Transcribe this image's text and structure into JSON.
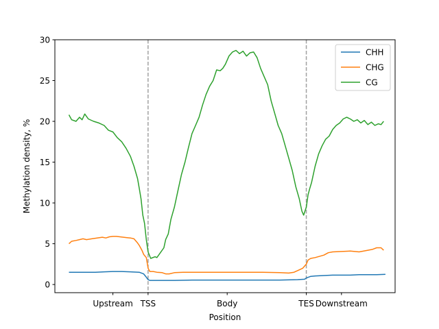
{
  "chart_data": {
    "type": "line",
    "xlabel": "Position",
    "ylabel": "Methylation density, %",
    "ylim": [
      -1,
      30
    ],
    "xlim": [
      -16,
      371
    ],
    "yticks": [
      0,
      5,
      10,
      15,
      20,
      25,
      30
    ],
    "x_tick_labels": [
      {
        "x": 50,
        "label": "Upstream"
      },
      {
        "x": 90,
        "label": "TSS"
      },
      {
        "x": 180,
        "label": "Body"
      },
      {
        "x": 270,
        "label": "TES"
      },
      {
        "x": 310,
        "label": "Downstream"
      }
    ],
    "vlines": [
      90,
      270
    ],
    "legend": {
      "position": "top-right"
    },
    "series": [
      {
        "name": "CHH",
        "color": "#1f77b4",
        "points": [
          [
            0,
            1.5
          ],
          [
            10,
            1.5
          ],
          [
            20,
            1.5
          ],
          [
            30,
            1.5
          ],
          [
            40,
            1.55
          ],
          [
            50,
            1.6
          ],
          [
            60,
            1.6
          ],
          [
            70,
            1.55
          ],
          [
            80,
            1.5
          ],
          [
            85,
            1.3
          ],
          [
            88,
            0.9
          ],
          [
            90,
            0.6
          ],
          [
            92,
            0.5
          ],
          [
            100,
            0.5
          ],
          [
            120,
            0.5
          ],
          [
            140,
            0.55
          ],
          [
            160,
            0.55
          ],
          [
            180,
            0.55
          ],
          [
            200,
            0.55
          ],
          [
            220,
            0.55
          ],
          [
            240,
            0.55
          ],
          [
            260,
            0.6
          ],
          [
            268,
            0.65
          ],
          [
            270,
            0.8
          ],
          [
            275,
            1.0
          ],
          [
            280,
            1.05
          ],
          [
            290,
            1.1
          ],
          [
            300,
            1.15
          ],
          [
            310,
            1.15
          ],
          [
            320,
            1.15
          ],
          [
            330,
            1.2
          ],
          [
            340,
            1.2
          ],
          [
            350,
            1.2
          ],
          [
            360,
            1.25
          ]
        ]
      },
      {
        "name": "CHG",
        "color": "#ff7f0e",
        "points": [
          [
            0,
            5.0
          ],
          [
            3,
            5.3
          ],
          [
            8,
            5.4
          ],
          [
            12,
            5.5
          ],
          [
            16,
            5.6
          ],
          [
            20,
            5.5
          ],
          [
            26,
            5.6
          ],
          [
            32,
            5.7
          ],
          [
            38,
            5.8
          ],
          [
            42,
            5.7
          ],
          [
            46,
            5.85
          ],
          [
            50,
            5.9
          ],
          [
            54,
            5.9
          ],
          [
            58,
            5.85
          ],
          [
            62,
            5.8
          ],
          [
            66,
            5.75
          ],
          [
            70,
            5.7
          ],
          [
            74,
            5.6
          ],
          [
            78,
            5.1
          ],
          [
            80,
            4.8
          ],
          [
            83,
            4.2
          ],
          [
            85,
            3.7
          ],
          [
            88,
            3.3
          ],
          [
            90,
            2.0
          ],
          [
            92,
            1.6
          ],
          [
            96,
            1.6
          ],
          [
            100,
            1.5
          ],
          [
            106,
            1.45
          ],
          [
            110,
            1.3
          ],
          [
            114,
            1.3
          ],
          [
            120,
            1.45
          ],
          [
            130,
            1.5
          ],
          [
            140,
            1.5
          ],
          [
            160,
            1.5
          ],
          [
            180,
            1.5
          ],
          [
            200,
            1.5
          ],
          [
            220,
            1.5
          ],
          [
            240,
            1.45
          ],
          [
            250,
            1.4
          ],
          [
            256,
            1.5
          ],
          [
            262,
            1.8
          ],
          [
            266,
            2.0
          ],
          [
            270,
            2.5
          ],
          [
            272,
            3.0
          ],
          [
            275,
            3.2
          ],
          [
            280,
            3.3
          ],
          [
            290,
            3.6
          ],
          [
            295,
            3.9
          ],
          [
            300,
            4.0
          ],
          [
            320,
            4.1
          ],
          [
            330,
            4.0
          ],
          [
            340,
            4.2
          ],
          [
            345,
            4.3
          ],
          [
            350,
            4.5
          ],
          [
            355,
            4.5
          ],
          [
            358,
            4.2
          ]
        ]
      },
      {
        "name": "CG",
        "color": "#2ca02c",
        "points": [
          [
            0,
            20.8
          ],
          [
            3,
            20.2
          ],
          [
            8,
            20.0
          ],
          [
            12,
            20.5
          ],
          [
            15,
            20.2
          ],
          [
            18,
            20.9
          ],
          [
            22,
            20.3
          ],
          [
            28,
            20.0
          ],
          [
            34,
            19.8
          ],
          [
            40,
            19.5
          ],
          [
            45,
            18.9
          ],
          [
            50,
            18.7
          ],
          [
            55,
            18.0
          ],
          [
            60,
            17.5
          ],
          [
            65,
            16.7
          ],
          [
            70,
            15.7
          ],
          [
            74,
            14.5
          ],
          [
            78,
            13.0
          ],
          [
            80,
            11.8
          ],
          [
            82,
            10.5
          ],
          [
            84,
            8.5
          ],
          [
            86,
            7.5
          ],
          [
            88,
            5.5
          ],
          [
            90,
            4.0
          ],
          [
            93,
            3.2
          ],
          [
            98,
            3.4
          ],
          [
            100,
            3.3
          ],
          [
            104,
            3.9
          ],
          [
            108,
            4.5
          ],
          [
            110,
            5.5
          ],
          [
            113,
            6.2
          ],
          [
            116,
            8.0
          ],
          [
            120,
            9.5
          ],
          [
            124,
            11.5
          ],
          [
            128,
            13.5
          ],
          [
            132,
            15.0
          ],
          [
            136,
            16.8
          ],
          [
            140,
            18.5
          ],
          [
            144,
            19.5
          ],
          [
            148,
            20.5
          ],
          [
            152,
            22.0
          ],
          [
            156,
            23.3
          ],
          [
            160,
            24.3
          ],
          [
            164,
            25.0
          ],
          [
            168,
            26.3
          ],
          [
            172,
            26.2
          ],
          [
            175,
            26.5
          ],
          [
            178,
            27.0
          ],
          [
            182,
            28.0
          ],
          [
            186,
            28.5
          ],
          [
            190,
            28.7
          ],
          [
            194,
            28.3
          ],
          [
            198,
            28.6
          ],
          [
            202,
            28.0
          ],
          [
            206,
            28.4
          ],
          [
            210,
            28.5
          ],
          [
            214,
            27.8
          ],
          [
            218,
            26.5
          ],
          [
            222,
            25.5
          ],
          [
            226,
            24.5
          ],
          [
            230,
            22.5
          ],
          [
            234,
            21.0
          ],
          [
            238,
            19.5
          ],
          [
            242,
            18.5
          ],
          [
            246,
            17.0
          ],
          [
            250,
            15.5
          ],
          [
            254,
            14.0
          ],
          [
            258,
            12.0
          ],
          [
            262,
            10.5
          ],
          [
            265,
            9.0
          ],
          [
            267,
            8.5
          ],
          [
            270,
            9.5
          ],
          [
            272,
            11.0
          ],
          [
            274,
            11.8
          ],
          [
            276,
            12.5
          ],
          [
            280,
            14.5
          ],
          [
            284,
            16.0
          ],
          [
            288,
            17.0
          ],
          [
            292,
            17.8
          ],
          [
            296,
            18.2
          ],
          [
            300,
            19.0
          ],
          [
            304,
            19.5
          ],
          [
            308,
            19.8
          ],
          [
            312,
            20.3
          ],
          [
            316,
            20.5
          ],
          [
            320,
            20.3
          ],
          [
            324,
            20.0
          ],
          [
            328,
            20.2
          ],
          [
            332,
            19.8
          ],
          [
            336,
            20.1
          ],
          [
            340,
            19.6
          ],
          [
            344,
            19.9
          ],
          [
            348,
            19.5
          ],
          [
            352,
            19.7
          ],
          [
            355,
            19.6
          ],
          [
            358,
            20.0
          ]
        ]
      }
    ]
  }
}
